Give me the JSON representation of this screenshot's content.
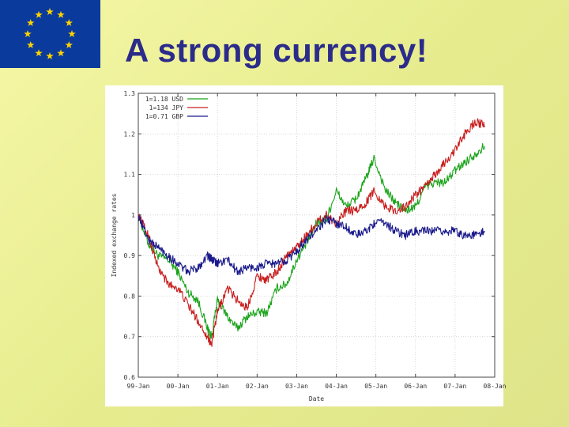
{
  "slide": {
    "title": "A strong currency!",
    "flag_icon": "eu-flag-icon",
    "flag_colors": {
      "field": "#0a3b9c",
      "stars": "#ffd200"
    }
  },
  "chart_data": {
    "type": "line",
    "title": "",
    "xlabel": "Date",
    "ylabel": "Indexed exchange rates",
    "ylim": [
      0.6,
      1.3
    ],
    "y_ticks": [
      0.6,
      0.7,
      0.8,
      0.9,
      1,
      1.1,
      1.2,
      1.3
    ],
    "y_tick_labels": [
      "0.6",
      "0.7",
      "0.8",
      "0.9",
      "1",
      "1.1",
      "1.2",
      "1.3"
    ],
    "xlim": [
      1999.0,
      2008.0
    ],
    "x_ticks": [
      1999,
      2000,
      2001,
      2002,
      2003,
      2004,
      2005,
      2006,
      2007,
      2008
    ],
    "x_tick_labels": [
      "99-Jan",
      "00-Jan",
      "01-Jan",
      "02-Jan",
      "03-Jan",
      "04-Jan",
      "05-Jan",
      "06-Jan",
      "07-Jan",
      "08-Jan"
    ],
    "grid": true,
    "legend": "top-left",
    "series": [
      {
        "name": "1=1.18 USD",
        "color": "#1aa31a",
        "x": [
          1999.0,
          1999.25,
          1999.5,
          1999.75,
          2000.0,
          2000.25,
          2000.5,
          2000.75,
          2000.85,
          2001.0,
          2001.25,
          2001.5,
          2001.75,
          2002.0,
          2002.25,
          2002.5,
          2002.75,
          2003.0,
          2003.25,
          2003.5,
          2003.75,
          2004.0,
          2004.25,
          2004.5,
          2004.75,
          2004.95,
          2005.25,
          2005.5,
          2005.75,
          2006.0,
          2006.25,
          2006.5,
          2006.75,
          2007.0,
          2007.25,
          2007.5,
          2007.75
        ],
        "y": [
          1.0,
          0.93,
          0.9,
          0.89,
          0.86,
          0.81,
          0.79,
          0.72,
          0.7,
          0.79,
          0.75,
          0.72,
          0.75,
          0.76,
          0.76,
          0.82,
          0.83,
          0.89,
          0.93,
          0.98,
          0.99,
          1.06,
          1.02,
          1.04,
          1.09,
          1.14,
          1.06,
          1.03,
          1.01,
          1.02,
          1.07,
          1.08,
          1.08,
          1.11,
          1.13,
          1.15,
          1.17
        ]
      },
      {
        "name": "1=134 JPY",
        "color": "#c81e1e",
        "x": [
          1999.0,
          1999.25,
          1999.5,
          1999.75,
          2000.0,
          2000.25,
          2000.5,
          2000.75,
          2000.85,
          2001.0,
          2001.25,
          2001.5,
          2001.75,
          2002.0,
          2002.25,
          2002.5,
          2002.75,
          2003.0,
          2003.25,
          2003.5,
          2003.75,
          2004.0,
          2004.25,
          2004.5,
          2004.75,
          2004.95,
          2005.25,
          2005.5,
          2005.75,
          2006.0,
          2006.25,
          2006.5,
          2006.75,
          2007.0,
          2007.25,
          2007.5,
          2007.75
        ],
        "y": [
          1.0,
          0.95,
          0.87,
          0.83,
          0.82,
          0.78,
          0.74,
          0.7,
          0.68,
          0.76,
          0.82,
          0.79,
          0.77,
          0.85,
          0.84,
          0.86,
          0.9,
          0.92,
          0.95,
          0.98,
          1.0,
          0.98,
          1.01,
          1.01,
          1.03,
          1.06,
          1.02,
          1.01,
          1.02,
          1.05,
          1.07,
          1.1,
          1.13,
          1.16,
          1.2,
          1.23,
          1.22
        ]
      },
      {
        "name": "1=0.71 GBP",
        "color": "#1a1a8c",
        "x": [
          1999.0,
          1999.25,
          1999.5,
          1999.75,
          2000.0,
          2000.25,
          2000.5,
          2000.75,
          2000.85,
          2001.0,
          2001.25,
          2001.5,
          2001.75,
          2002.0,
          2002.25,
          2002.5,
          2002.75,
          2003.0,
          2003.25,
          2003.5,
          2003.75,
          2004.0,
          2004.25,
          2004.5,
          2004.75,
          2004.95,
          2005.25,
          2005.5,
          2005.75,
          2006.0,
          2006.25,
          2006.5,
          2006.75,
          2007.0,
          2007.25,
          2007.5,
          2007.75
        ],
        "y": [
          1.0,
          0.94,
          0.92,
          0.9,
          0.88,
          0.86,
          0.87,
          0.9,
          0.89,
          0.88,
          0.89,
          0.86,
          0.87,
          0.87,
          0.88,
          0.88,
          0.89,
          0.91,
          0.94,
          0.96,
          0.99,
          0.98,
          0.97,
          0.95,
          0.96,
          0.98,
          0.98,
          0.96,
          0.95,
          0.96,
          0.96,
          0.96,
          0.96,
          0.96,
          0.95,
          0.95,
          0.96
        ]
      }
    ]
  }
}
